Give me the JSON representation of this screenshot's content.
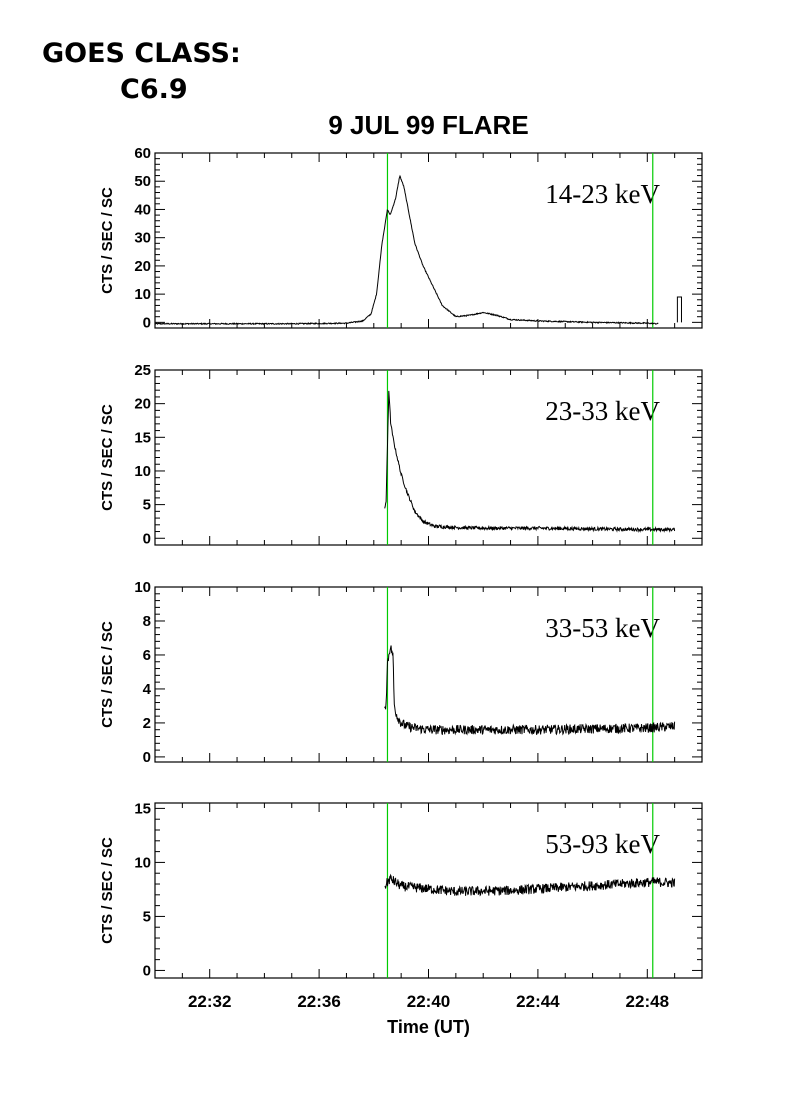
{
  "header": {
    "goes_label": "GOES CLASS:",
    "goes_class": "C6.9",
    "title": "9 JUL 99 FLARE"
  },
  "colors": {
    "marker_line": "#00cc00",
    "trace": "#000000"
  },
  "chart_data": {
    "type": "line",
    "title": "9 JUL 99 FLARE",
    "xlabel": "Time (UT)",
    "x_units": "minutes after 22:00 UT",
    "xlim": [
      30.0,
      50.0
    ],
    "xticks": [
      "22:32",
      "22:36",
      "22:40",
      "22:44",
      "22:48"
    ],
    "vertical_markers": [
      "22:38:30",
      "22:48:12"
    ],
    "panels": [
      {
        "band": "14-23 keV",
        "ylabel": "CTS / SEC / SC",
        "ylim": [
          -2,
          60
        ],
        "yticks": [
          0,
          10,
          20,
          30,
          40,
          50,
          60
        ],
        "series": {
          "x": [
            30.0,
            35.0,
            37.0,
            37.6,
            37.9,
            38.1,
            38.3,
            38.5,
            38.6,
            38.8,
            38.95,
            39.1,
            39.3,
            39.5,
            39.8,
            40.1,
            40.5,
            41.0,
            41.5,
            42.0,
            42.5,
            43.0,
            44.0,
            46.0,
            48.0,
            48.4
          ],
          "y": [
            -0.5,
            -0.5,
            -0.3,
            0.5,
            3,
            10,
            28,
            40,
            38,
            44,
            52,
            48,
            38,
            28,
            20,
            14,
            6,
            2,
            2.5,
            3.5,
            2.5,
            1,
            0.5,
            0,
            -0.3,
            -0.5
          ]
        },
        "spike": {
          "x": [
            49.1,
            49.25
          ],
          "y": [
            9,
            0
          ]
        }
      },
      {
        "band": "23-33 keV",
        "ylabel": "CTS / SEC / SC",
        "ylim": [
          -1,
          25
        ],
        "yticks": [
          0,
          5,
          10,
          15,
          20,
          25
        ],
        "series": {
          "x": [
            38.4,
            38.45,
            38.5,
            38.55,
            38.62,
            38.7,
            38.8,
            39.0,
            39.2,
            39.5,
            39.8,
            40.2,
            41.0,
            42.0,
            44.0,
            46.0,
            48.0,
            49.0
          ],
          "y": [
            4.5,
            5.5,
            14,
            22,
            17,
            15,
            13,
            9.5,
            7,
            4,
            2.5,
            1.8,
            1.6,
            1.5,
            1.5,
            1.4,
            1.3,
            1.3
          ]
        },
        "noise": 0.25
      },
      {
        "band": "33-53 keV",
        "ylabel": "CTS / SEC / SC",
        "ylim": [
          -0.3,
          10
        ],
        "yticks": [
          0,
          2,
          4,
          6,
          8,
          10
        ],
        "series": {
          "x": [
            38.4,
            38.45,
            38.5,
            38.6,
            38.7,
            38.75,
            38.85,
            39.0,
            39.2,
            39.5,
            40.0,
            44.0,
            48.0,
            49.0
          ],
          "y": [
            2.6,
            3.3,
            5.5,
            6.5,
            6.0,
            3.0,
            2.4,
            2.0,
            1.8,
            1.7,
            1.6,
            1.6,
            1.7,
            1.8
          ]
        },
        "noise": 0.28
      },
      {
        "band": "53-93 keV",
        "ylabel": "CTS / SEC / SC",
        "ylim": [
          -0.7,
          15.5
        ],
        "yticks": [
          0,
          5,
          10,
          15
        ],
        "series": {
          "x": [
            38.4,
            38.6,
            39.0,
            41.0,
            43.0,
            45.0,
            47.0,
            48.3,
            49.0
          ],
          "y": [
            7.8,
            8.5,
            7.8,
            7.3,
            7.4,
            7.7,
            8.0,
            8.2,
            8.1
          ]
        },
        "noise": 0.45
      }
    ]
  }
}
